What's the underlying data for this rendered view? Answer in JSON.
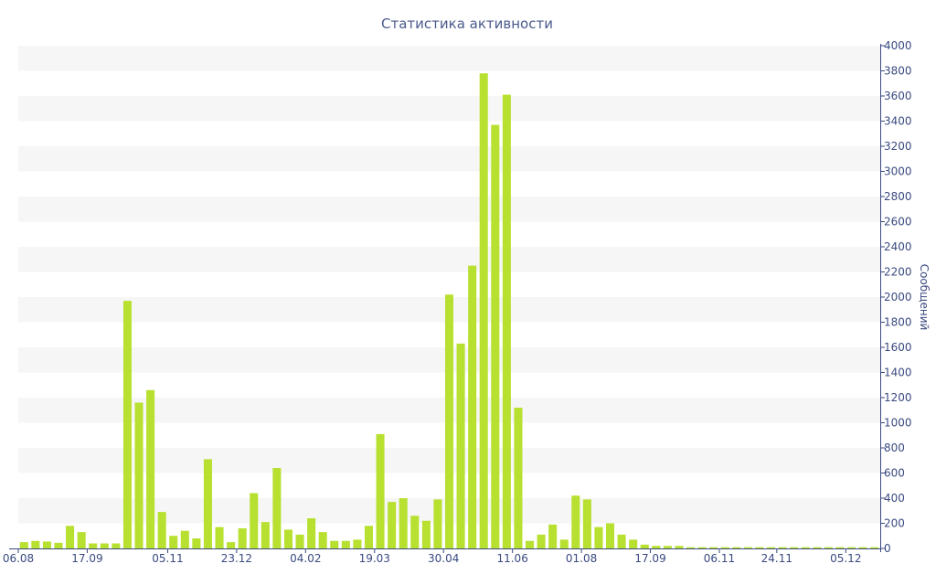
{
  "chart_data": {
    "type": "bar",
    "title": "Статистика активности",
    "xlabel": "",
    "ylabel": "Сообщений",
    "ylim": [
      0,
      4000
    ],
    "yticks": [
      0,
      200,
      400,
      600,
      800,
      1000,
      1200,
      1400,
      1600,
      1800,
      2000,
      2200,
      2400,
      2600,
      2800,
      3000,
      3200,
      3400,
      3600,
      3800,
      4000
    ],
    "y_axis_side": "right",
    "grid": "horizontal-bands",
    "colors": {
      "bar": "#b8e030",
      "band": "#f6f6f6",
      "axis": "#3a4a80",
      "title": "#4b5a8c"
    },
    "xtick_labels": [
      {
        "label": "06.08",
        "index": 0
      },
      {
        "label": "17.09",
        "index": 6
      },
      {
        "label": "05.11",
        "index": 13
      },
      {
        "label": "23.12",
        "index": 19
      },
      {
        "label": "04.02",
        "index": 25
      },
      {
        "label": "19.03",
        "index": 31
      },
      {
        "label": "30.04",
        "index": 37
      },
      {
        "label": "11.06",
        "index": 43
      },
      {
        "label": "01.08",
        "index": 49
      },
      {
        "label": "17.09",
        "index": 55
      },
      {
        "label": "06.11",
        "index": 61
      },
      {
        "label": "24.11",
        "index": 66
      },
      {
        "label": "05.12",
        "index": 72
      }
    ],
    "values": [
      50,
      60,
      55,
      45,
      180,
      130,
      40,
      40,
      40,
      1970,
      1160,
      1260,
      290,
      100,
      140,
      80,
      710,
      170,
      50,
      160,
      440,
      210,
      640,
      150,
      110,
      240,
      130,
      60,
      60,
      70,
      180,
      910,
      370,
      400,
      260,
      220,
      390,
      2020,
      1630,
      2250,
      3780,
      3370,
      3610,
      1120,
      60,
      110,
      190,
      70,
      420,
      390,
      170,
      200,
      110,
      70,
      30,
      20,
      20,
      20,
      10,
      10,
      10,
      10,
      10,
      10,
      10,
      10,
      10,
      10,
      10,
      10,
      10,
      10,
      10,
      10,
      10
    ]
  }
}
